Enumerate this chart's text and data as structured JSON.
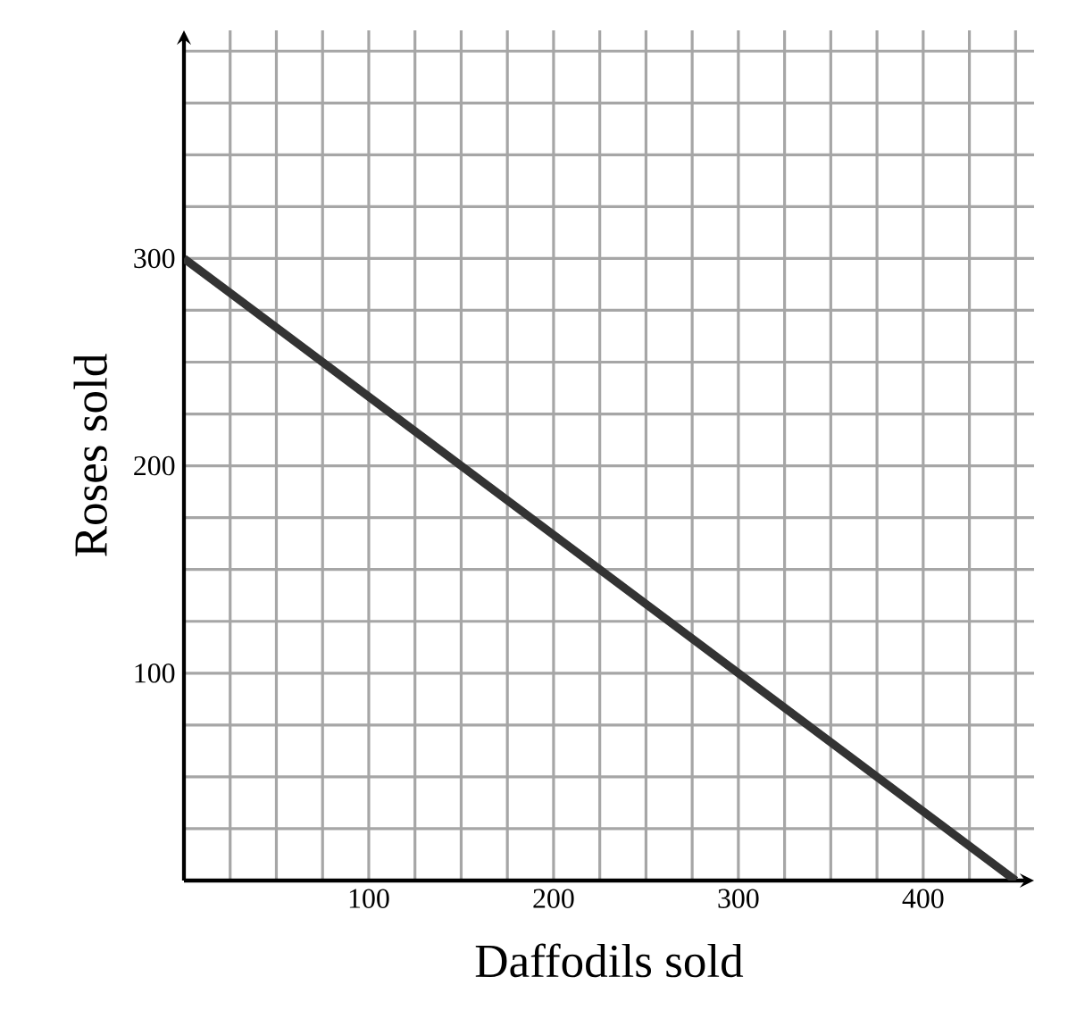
{
  "chart_data": {
    "type": "line",
    "xlabel": "Daffodils sold",
    "ylabel": "Roses sold",
    "x": [
      0,
      450
    ],
    "values": [
      300,
      0
    ],
    "color": "#333333",
    "xlim": [
      0,
      460
    ],
    "ylim": [
      0,
      410
    ],
    "xticks": [
      {
        "value": 25,
        "label": null
      },
      {
        "value": 50,
        "label": null
      },
      {
        "value": 75,
        "label": null
      },
      100,
      {
        "value": 125,
        "label": null
      },
      {
        "value": 150,
        "label": null
      },
      {
        "value": 175,
        "label": null
      },
      200,
      {
        "value": 225,
        "label": null
      },
      {
        "value": 250,
        "label": null
      },
      {
        "value": 275,
        "label": null
      },
      300,
      {
        "value": 325,
        "label": null
      },
      {
        "value": 350,
        "label": null
      },
      {
        "value": 375,
        "label": null
      },
      400,
      {
        "value": 425,
        "label": null
      },
      {
        "value": 450,
        "label": null
      }
    ],
    "yticks": [
      {
        "value": 25,
        "label": null
      },
      {
        "value": 50,
        "label": null
      },
      {
        "value": 75,
        "label": null
      },
      100,
      {
        "value": 125,
        "label": null
      },
      {
        "value": 150,
        "label": null
      },
      {
        "value": 175,
        "label": null
      },
      200,
      {
        "value": 225,
        "label": null
      },
      {
        "value": 250,
        "label": null
      },
      {
        "value": 275,
        "label": null
      },
      300,
      {
        "value": 325,
        "label": null
      },
      {
        "value": 350,
        "label": null
      },
      {
        "value": 375,
        "label": null
      },
      {
        "value": 400,
        "label": null
      }
    ],
    "grid": true
  }
}
